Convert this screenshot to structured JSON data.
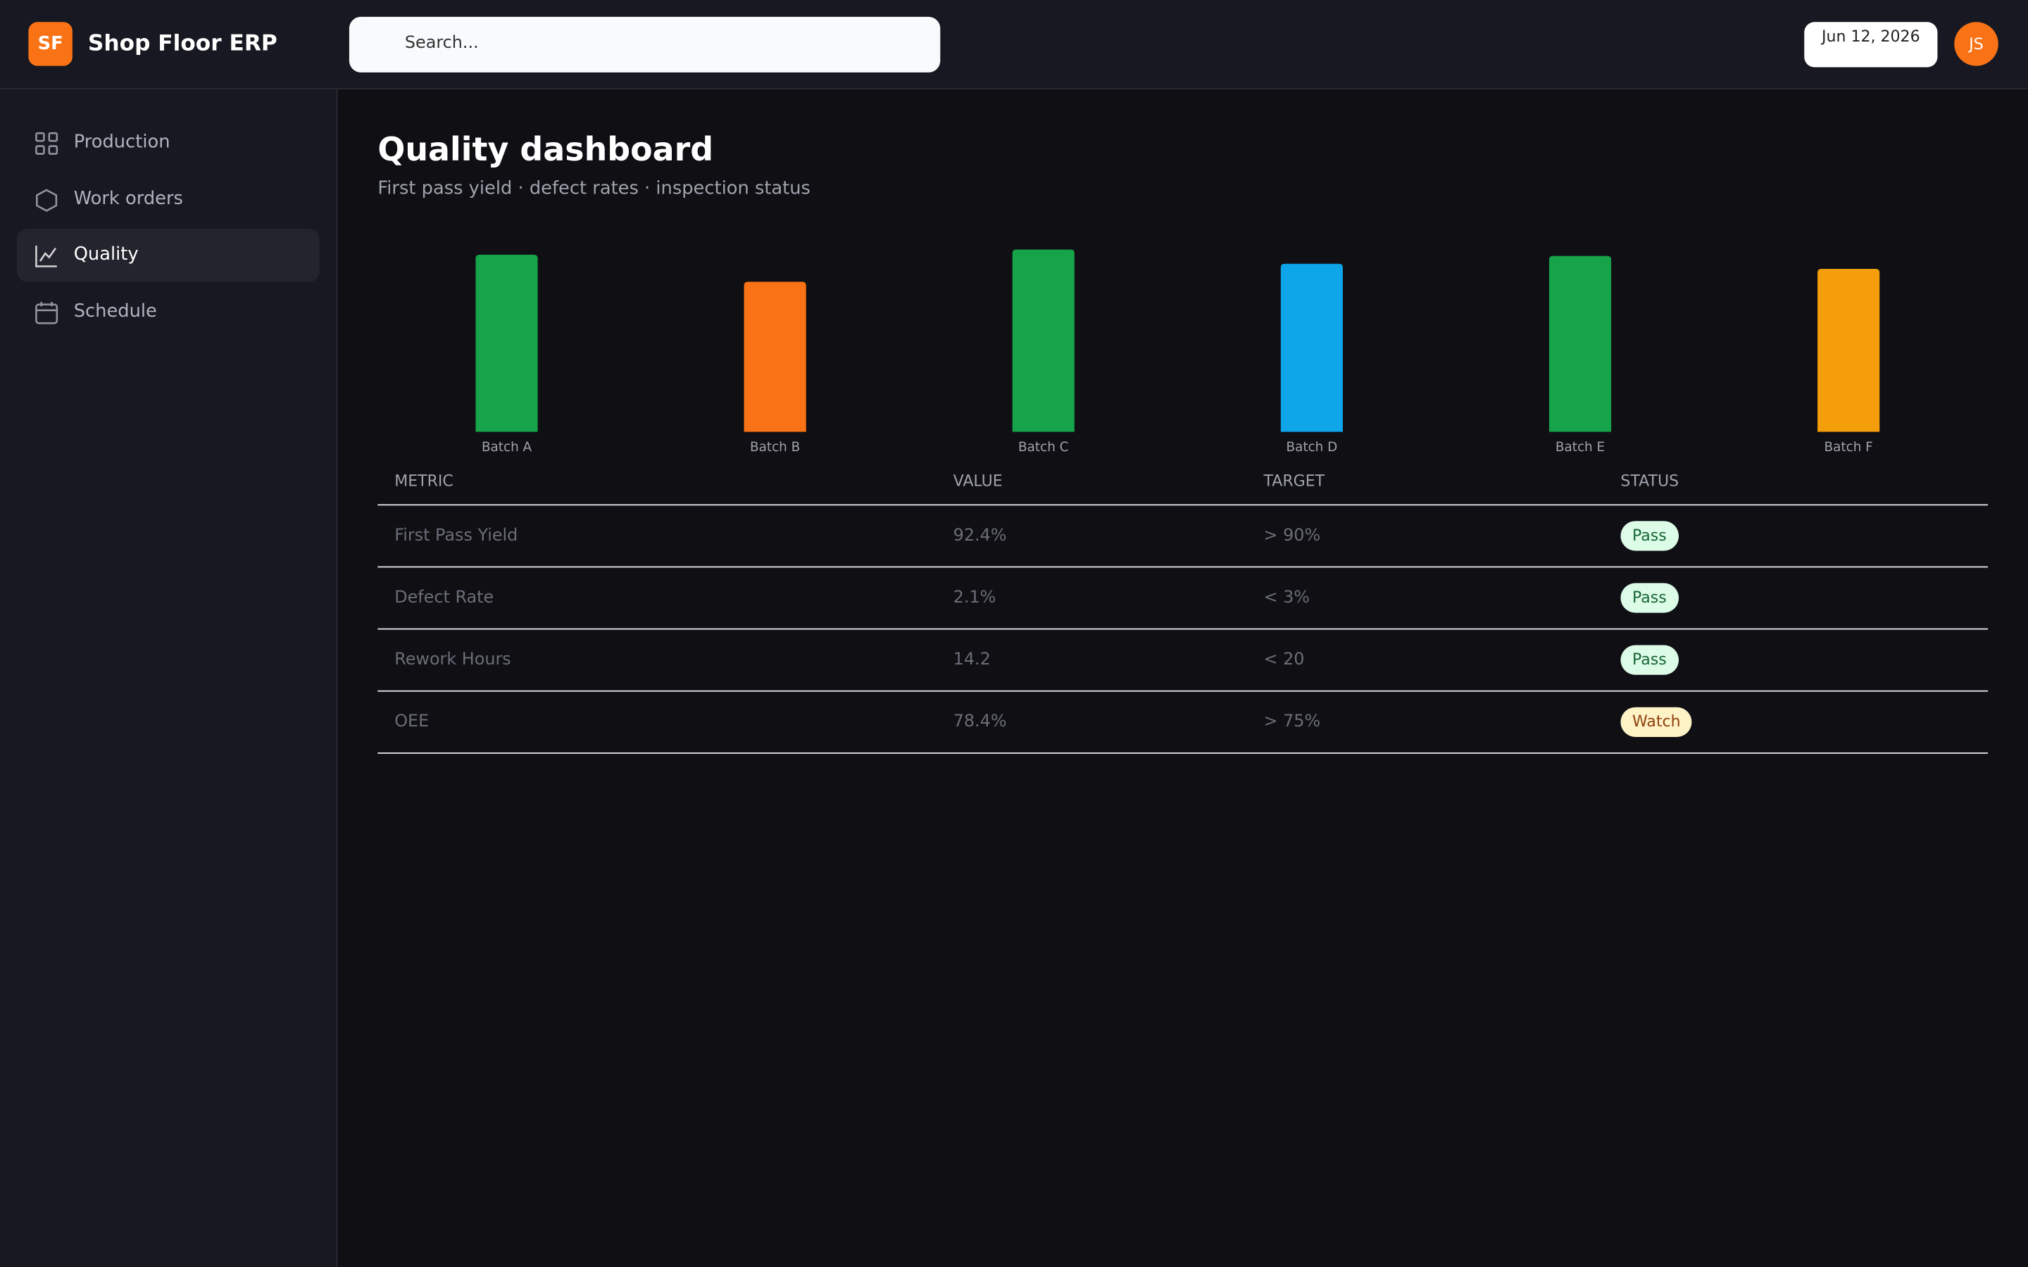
{
  "header": {
    "logo": "SF",
    "app_name": "Shop Floor ERP",
    "search_placeholder": "Search...",
    "date": "Jun 12, 2026",
    "avatar": "JS"
  },
  "nav": {
    "items": [
      "Production",
      "Work orders",
      "Quality",
      "Schedule"
    ],
    "active": 2
  },
  "page": {
    "title": "Quality dashboard",
    "subtitle": "First pass yield · defect rates · inspection status"
  },
  "chart_data": {
    "type": "bar",
    "categories": [
      "Batch A",
      "Batch B",
      "Batch C",
      "Batch D",
      "Batch E",
      "Batch F"
    ],
    "values": [
      137,
      116,
      141,
      130,
      136,
      126
    ],
    "colors": [
      "#16a34a",
      "#f97316",
      "#16a34a",
      "#0ea5e9",
      "#16a34a",
      "#f59e0b"
    ],
    "ylim": [
      0,
      150
    ]
  },
  "table": {
    "columns": [
      "METRIC",
      "VALUE",
      "TARGET",
      "STATUS"
    ],
    "rows": [
      {
        "metric": "First Pass Yield",
        "value": "92.4%",
        "target": "> 90%",
        "status": "Pass",
        "badge_bg": "#dcfce7",
        "badge_fg": "#166534"
      },
      {
        "metric": "Defect Rate",
        "value": "2.1%",
        "target": "< 3%",
        "status": "Pass",
        "badge_bg": "#dcfce7",
        "badge_fg": "#166534"
      },
      {
        "metric": "Rework Hours",
        "value": "14.2",
        "target": "< 20",
        "status": "Pass",
        "badge_bg": "#dcfce7",
        "badge_fg": "#166534"
      },
      {
        "metric": "OEE",
        "value": "78.4%",
        "target": "> 75%",
        "status": "Watch",
        "badge_bg": "#fef3c7",
        "badge_fg": "#92400e"
      }
    ]
  }
}
